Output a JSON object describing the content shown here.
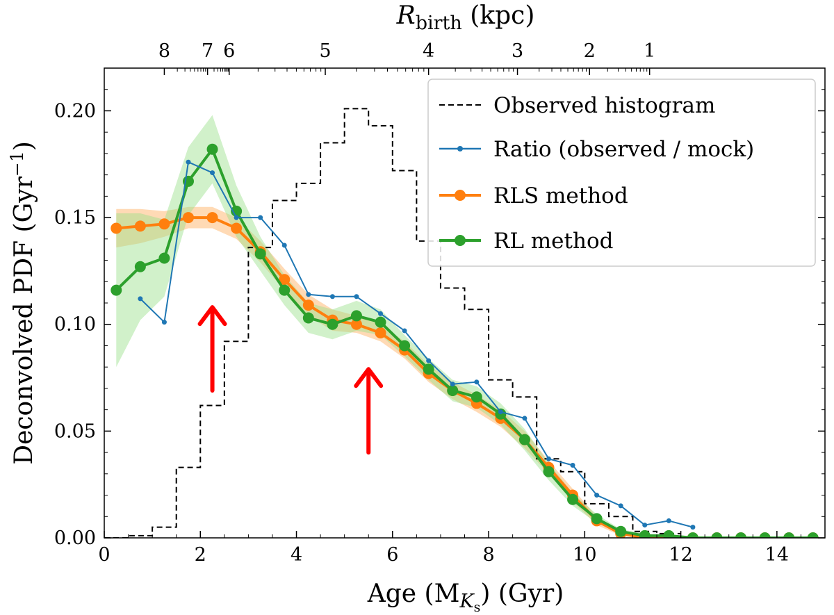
{
  "chart_data": {
    "type": "line",
    "xlabel": "Age  (M",
    "xlabel_sub": "K",
    "xlabel_subsub": "s",
    "xlabel_tail": ")  (Gyr)",
    "ylabel": "Deconvolved PDF  (Gyr",
    "ylabel_sup": "−1",
    "ylabel_tail": ")",
    "top_xlabel": "R",
    "top_xlabel_sub": "birth",
    "top_xlabel_tail": "  (kpc)",
    "xlim": [
      0,
      15
    ],
    "ylim": [
      0,
      0.22
    ],
    "xticks": [
      0,
      2,
      4,
      6,
      8,
      10,
      12,
      14
    ],
    "yticks": [
      0.0,
      0.05,
      0.1,
      0.15,
      0.2
    ],
    "xtick_labels": [
      "0",
      "2",
      "4",
      "6",
      "8",
      "10",
      "12",
      "14"
    ],
    "ytick_labels": [
      "0.00",
      "0.05",
      "0.10",
      "0.15",
      "0.20"
    ],
    "top_ticks": [
      {
        "label": "8",
        "age": 1.25
      },
      {
        "label": "7",
        "age": 2.15
      },
      {
        "label": "6",
        "age": 2.6
      },
      {
        "label": "5",
        "age": 4.6
      },
      {
        "label": "4",
        "age": 6.75
      },
      {
        "label": "3",
        "age": 8.6
      },
      {
        "label": "2",
        "age": 10.1
      },
      {
        "label": "1",
        "age": 11.35
      }
    ],
    "legend_placement": "top-right",
    "series": [
      {
        "name": "Observed histogram",
        "style": "step",
        "color": "#000000",
        "edges": [
          0.0,
          0.5,
          1.0,
          1.5,
          2.0,
          2.5,
          3.0,
          3.5,
          4.0,
          4.5,
          5.0,
          5.5,
          6.0,
          6.5,
          7.0,
          7.5,
          8.0,
          8.5,
          9.0,
          9.5,
          10.0,
          10.5,
          11.0,
          11.5,
          12.0
        ],
        "values": [
          0.0,
          0.001,
          0.005,
          0.033,
          0.062,
          0.092,
          0.136,
          0.158,
          0.166,
          0.185,
          0.201,
          0.193,
          0.172,
          0.139,
          0.117,
          0.107,
          0.074,
          0.066,
          0.037,
          0.031,
          0.016,
          0.01,
          0.003,
          0.002
        ]
      },
      {
        "name": "Ratio (observed / mock)",
        "style": "line",
        "color": "#1f77b4",
        "x": [
          0.75,
          1.25,
          1.75,
          2.25,
          2.75,
          3.25,
          3.75,
          4.25,
          4.75,
          5.25,
          5.75,
          6.25,
          6.75,
          7.25,
          7.75,
          8.25,
          8.75,
          9.25,
          9.75,
          10.25,
          10.75,
          11.25,
          11.75,
          12.25
        ],
        "y": [
          0.112,
          0.101,
          0.176,
          0.171,
          0.15,
          0.15,
          0.137,
          0.114,
          0.113,
          0.113,
          0.105,
          0.097,
          0.083,
          0.072,
          0.073,
          0.059,
          0.056,
          0.037,
          0.034,
          0.02,
          0.015,
          0.006,
          0.008,
          0.005
        ]
      },
      {
        "name": "RLS method",
        "style": "line",
        "color": "#ff7f0e",
        "band_color": "#ffbb78",
        "x": [
          0.25,
          0.75,
          1.25,
          1.75,
          2.25,
          2.75,
          3.25,
          3.75,
          4.25,
          4.75,
          5.25,
          5.75,
          6.25,
          6.75,
          7.25,
          7.75,
          8.25,
          8.75,
          9.25,
          9.75,
          10.25,
          10.75,
          11.25,
          11.75,
          12.25,
          12.75,
          13.25,
          13.75,
          14.25,
          14.75
        ],
        "y": [
          0.145,
          0.146,
          0.147,
          0.15,
          0.15,
          0.145,
          0.134,
          0.121,
          0.109,
          0.102,
          0.1,
          0.096,
          0.088,
          0.077,
          0.069,
          0.063,
          0.056,
          0.046,
          0.033,
          0.02,
          0.008,
          0.002,
          0.0,
          0.0,
          0.0,
          0.0,
          0.0,
          0.0,
          0.0,
          0.0
        ],
        "err": [
          0.009,
          0.008,
          0.006,
          0.005,
          0.005,
          0.005,
          0.005,
          0.005,
          0.005,
          0.005,
          0.004,
          0.004,
          0.004,
          0.004,
          0.004,
          0.004,
          0.004,
          0.004,
          0.003,
          0.003,
          0.002,
          0.001,
          0.001,
          0.0,
          0.0,
          0.0,
          0.0,
          0.0,
          0.0,
          0.0
        ]
      },
      {
        "name": "RL method",
        "style": "line",
        "color": "#2ca02c",
        "band_color": "#98df8a",
        "x": [
          0.25,
          0.75,
          1.25,
          1.75,
          2.25,
          2.75,
          3.25,
          3.75,
          4.25,
          4.75,
          5.25,
          5.75,
          6.25,
          6.75,
          7.25,
          7.75,
          8.25,
          8.75,
          9.25,
          9.75,
          10.25,
          10.75,
          11.25,
          11.75,
          12.25,
          12.75,
          13.25,
          13.75,
          14.25,
          14.75
        ],
        "y": [
          0.116,
          0.127,
          0.131,
          0.167,
          0.182,
          0.153,
          0.133,
          0.116,
          0.103,
          0.1,
          0.104,
          0.101,
          0.09,
          0.079,
          0.069,
          0.066,
          0.058,
          0.046,
          0.031,
          0.018,
          0.009,
          0.003,
          0.001,
          0.001,
          0.0,
          0.0,
          0.0,
          0.0,
          0.0,
          0.0
        ],
        "err": [
          0.036,
          0.025,
          0.018,
          0.016,
          0.016,
          0.012,
          0.008,
          0.007,
          0.007,
          0.007,
          0.007,
          0.006,
          0.005,
          0.005,
          0.005,
          0.005,
          0.005,
          0.005,
          0.004,
          0.003,
          0.002,
          0.001,
          0.001,
          0.0,
          0.0,
          0.0,
          0.0,
          0.0,
          0.0,
          0.0
        ]
      }
    ],
    "annotations": [
      {
        "type": "arrow",
        "color": "#ff0000",
        "x": 2.25,
        "y_from": 0.069,
        "y_to": 0.108
      },
      {
        "type": "arrow",
        "color": "#ff0000",
        "x": 5.5,
        "y_from": 0.04,
        "y_to": 0.079
      }
    ]
  }
}
